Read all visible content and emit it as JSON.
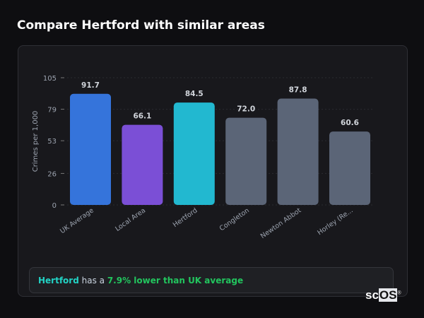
{
  "header": {
    "title": "Compare Hertford with similar areas"
  },
  "chart_data": {
    "type": "bar",
    "categories": [
      "UK Average",
      "Local Area",
      "Hertford",
      "Congleton",
      "Newton Abbot",
      "Horley (Re..."
    ],
    "values": [
      91.7,
      66.1,
      84.5,
      72.0,
      87.8,
      60.6
    ],
    "data_labels": [
      "91.7",
      "66.1",
      "84.5",
      "72.0",
      "87.8",
      "60.6"
    ],
    "colors": [
      "#3574db",
      "#7b4fd6",
      "#22b8d0",
      "#5b6577",
      "#5b6577",
      "#5b6577"
    ],
    "ylabel": "Crimes per 1,000",
    "xlabel": "",
    "ylim": [
      0,
      105
    ],
    "yticks": [
      0,
      26,
      53,
      79,
      105
    ],
    "grid": true
  },
  "banner": {
    "place": "Hertford",
    "text": " has a ",
    "highlight": "7.9% lower than UK average"
  },
  "logo": {
    "text_a": "sc",
    "text_b": "OS",
    "mark": "®"
  }
}
